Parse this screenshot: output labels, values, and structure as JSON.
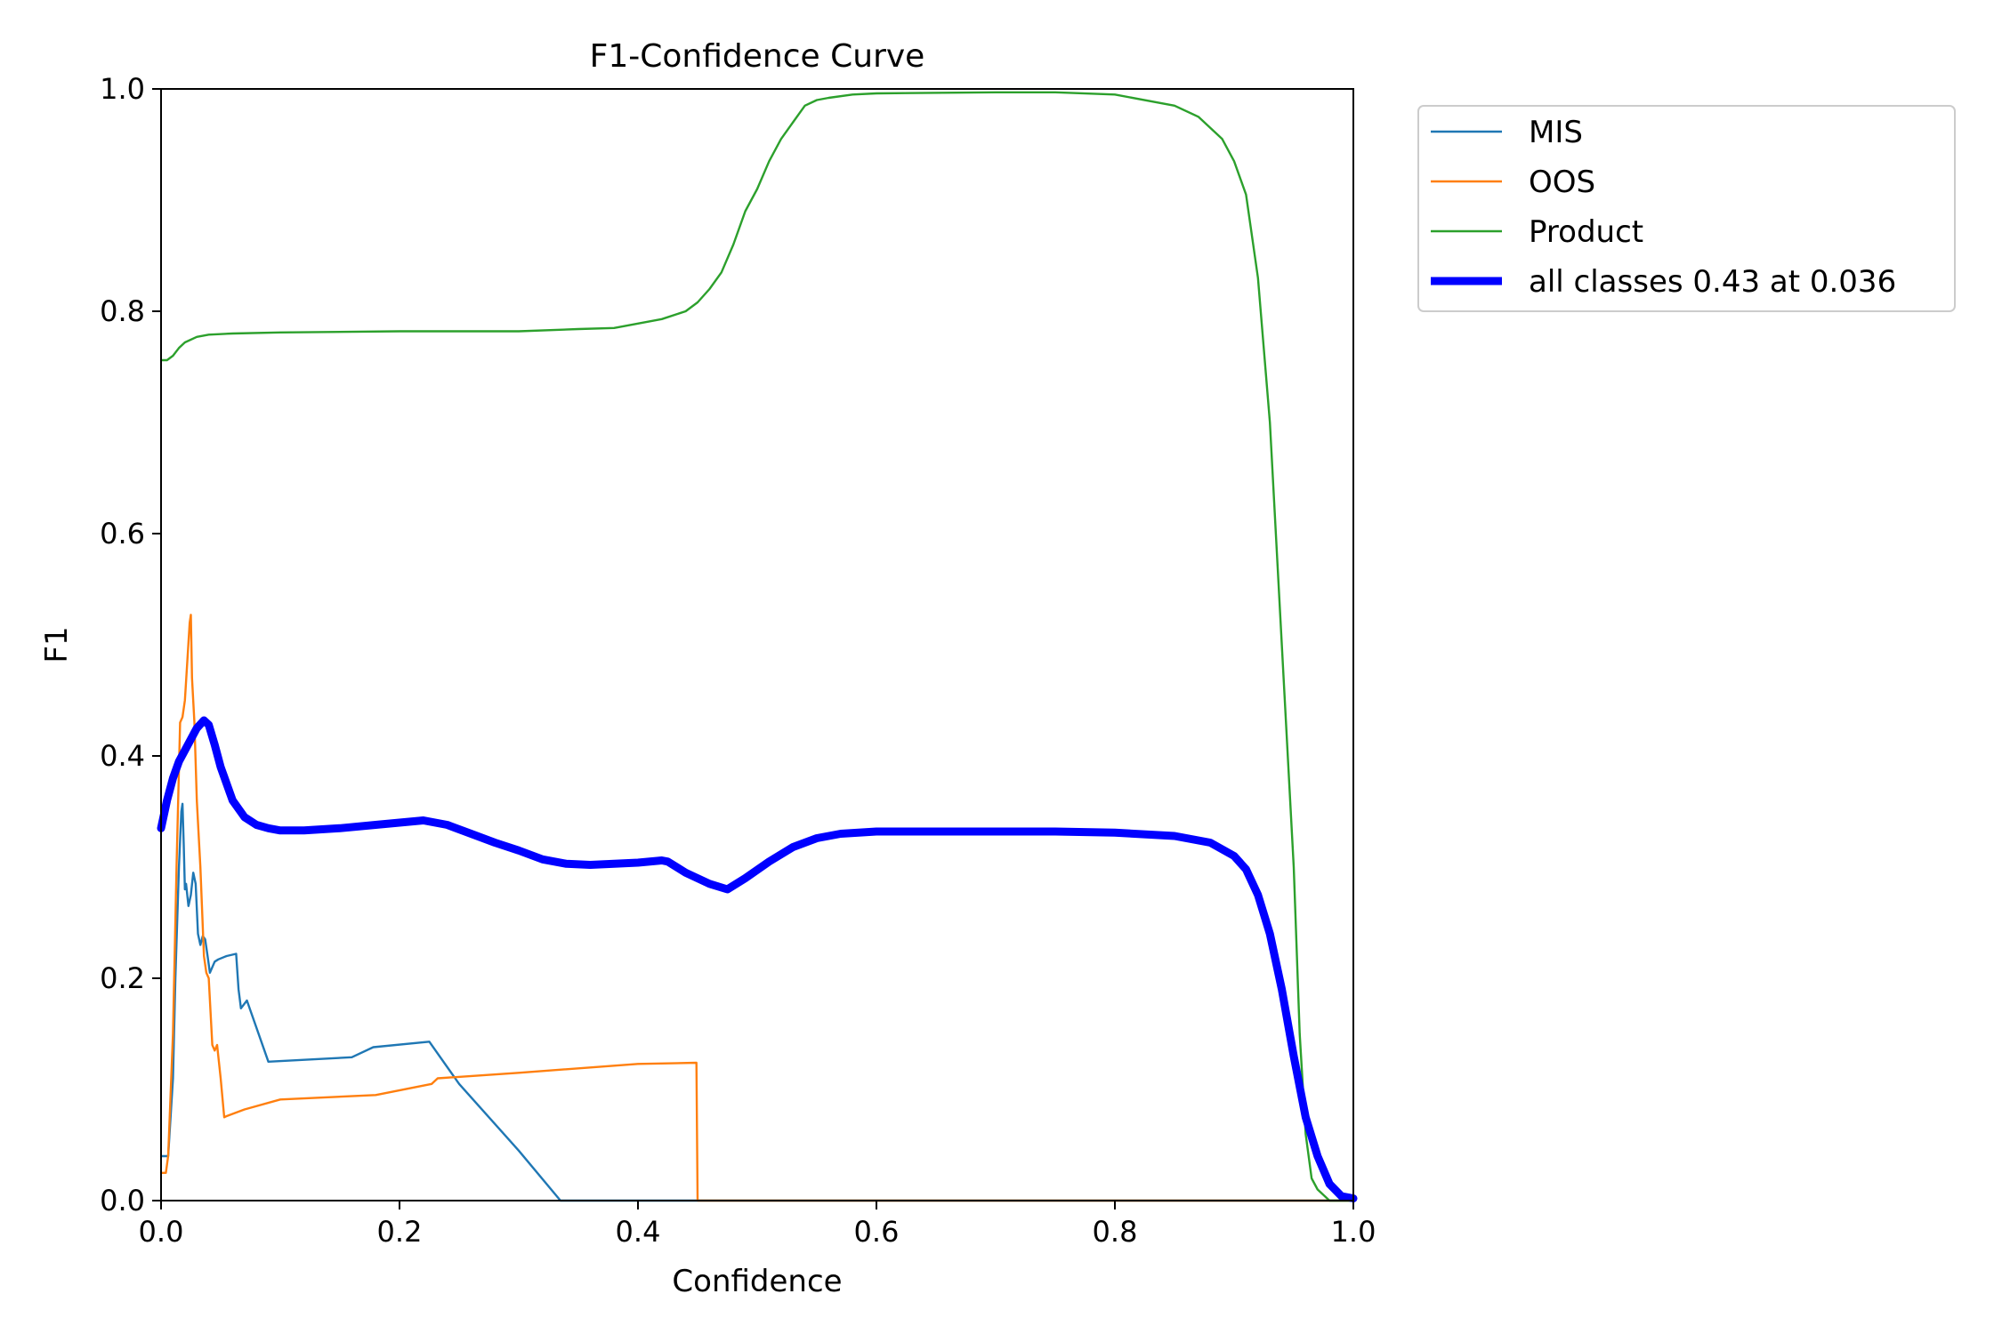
{
  "chart_data": {
    "type": "line",
    "title": "F1-Confidence Curve",
    "xlabel": "Confidence",
    "ylabel": "F1",
    "xlim": [
      0.0,
      1.0
    ],
    "ylim": [
      0.0,
      1.0
    ],
    "x_ticks": [
      "0.0",
      "0.2",
      "0.4",
      "0.6",
      "0.8",
      "1.0"
    ],
    "y_ticks": [
      "0.0",
      "0.2",
      "0.4",
      "0.6",
      "0.8",
      "1.0"
    ],
    "grid": false,
    "legend_position": "outside-top-right",
    "series": [
      {
        "name": "MIS",
        "color": "#1f77b4",
        "x": [
          0.0,
          0.006,
          0.01,
          0.012,
          0.015,
          0.017,
          0.018,
          0.019,
          0.02,
          0.021,
          0.023,
          0.025,
          0.027,
          0.029,
          0.031,
          0.033,
          0.035,
          0.037,
          0.039,
          0.041,
          0.045,
          0.048,
          0.055,
          0.063,
          0.065,
          0.067,
          0.072,
          0.09,
          0.16,
          0.178,
          0.225,
          0.25,
          0.3,
          0.335,
          0.4,
          0.6,
          0.8,
          1.0
        ],
        "y": [
          0.04,
          0.04,
          0.11,
          0.2,
          0.3,
          0.35,
          0.357,
          0.32,
          0.28,
          0.285,
          0.265,
          0.275,
          0.295,
          0.285,
          0.24,
          0.23,
          0.238,
          0.235,
          0.22,
          0.205,
          0.215,
          0.217,
          0.22,
          0.222,
          0.19,
          0.173,
          0.18,
          0.125,
          0.129,
          0.138,
          0.143,
          0.105,
          0.045,
          0.0,
          0.0,
          0.0,
          0.0,
          0.0
        ]
      },
      {
        "name": "OOS",
        "color": "#ff7f0e",
        "x": [
          0.0,
          0.004,
          0.006,
          0.01,
          0.013,
          0.016,
          0.018,
          0.02,
          0.022,
          0.024,
          0.025,
          0.026,
          0.028,
          0.03,
          0.033,
          0.036,
          0.038,
          0.04,
          0.043,
          0.045,
          0.047,
          0.05,
          0.053,
          0.055,
          0.07,
          0.1,
          0.18,
          0.227,
          0.232,
          0.3,
          0.4,
          0.449,
          0.45,
          0.6,
          0.8,
          1.0
        ],
        "y": [
          0.025,
          0.025,
          0.04,
          0.15,
          0.3,
          0.43,
          0.435,
          0.45,
          0.485,
          0.52,
          0.527,
          0.47,
          0.43,
          0.36,
          0.3,
          0.22,
          0.205,
          0.2,
          0.14,
          0.135,
          0.14,
          0.11,
          0.075,
          0.076,
          0.082,
          0.091,
          0.095,
          0.105,
          0.11,
          0.115,
          0.123,
          0.124,
          0.0,
          0.0,
          0.0,
          0.0
        ]
      },
      {
        "name": "Product",
        "color": "#2ca02c",
        "x": [
          0.0,
          0.005,
          0.01,
          0.015,
          0.02,
          0.03,
          0.04,
          0.06,
          0.1,
          0.2,
          0.3,
          0.35,
          0.38,
          0.4,
          0.42,
          0.44,
          0.45,
          0.46,
          0.47,
          0.48,
          0.49,
          0.5,
          0.51,
          0.52,
          0.53,
          0.54,
          0.55,
          0.56,
          0.58,
          0.6,
          0.7,
          0.75,
          0.8,
          0.85,
          0.87,
          0.88,
          0.89,
          0.9,
          0.91,
          0.92,
          0.93,
          0.94,
          0.95,
          0.955,
          0.96,
          0.965,
          0.97,
          0.98,
          1.0
        ],
        "y": [
          0.756,
          0.756,
          0.76,
          0.767,
          0.772,
          0.777,
          0.779,
          0.78,
          0.781,
          0.782,
          0.782,
          0.784,
          0.785,
          0.789,
          0.793,
          0.8,
          0.808,
          0.82,
          0.835,
          0.86,
          0.89,
          0.91,
          0.935,
          0.955,
          0.97,
          0.985,
          0.99,
          0.992,
          0.995,
          0.996,
          0.997,
          0.997,
          0.995,
          0.985,
          0.975,
          0.965,
          0.955,
          0.935,
          0.905,
          0.83,
          0.7,
          0.5,
          0.3,
          0.15,
          0.06,
          0.02,
          0.01,
          0.0,
          0.0
        ]
      },
      {
        "name": "all classes 0.43 at 0.036",
        "color": "#0000ff",
        "thick": true,
        "x": [
          0.0,
          0.005,
          0.01,
          0.015,
          0.02,
          0.025,
          0.03,
          0.036,
          0.04,
          0.045,
          0.05,
          0.06,
          0.07,
          0.08,
          0.09,
          0.1,
          0.12,
          0.15,
          0.18,
          0.2,
          0.22,
          0.24,
          0.26,
          0.28,
          0.3,
          0.32,
          0.34,
          0.36,
          0.38,
          0.4,
          0.42,
          0.425,
          0.44,
          0.46,
          0.475,
          0.49,
          0.51,
          0.53,
          0.55,
          0.57,
          0.6,
          0.65,
          0.7,
          0.75,
          0.8,
          0.85,
          0.88,
          0.9,
          0.91,
          0.92,
          0.93,
          0.94,
          0.95,
          0.96,
          0.97,
          0.98,
          0.99,
          1.0
        ],
        "y": [
          0.335,
          0.36,
          0.38,
          0.395,
          0.405,
          0.415,
          0.425,
          0.432,
          0.428,
          0.41,
          0.39,
          0.36,
          0.345,
          0.338,
          0.335,
          0.333,
          0.333,
          0.335,
          0.338,
          0.34,
          0.342,
          0.338,
          0.33,
          0.322,
          0.315,
          0.307,
          0.303,
          0.302,
          0.303,
          0.304,
          0.306,
          0.305,
          0.295,
          0.285,
          0.28,
          0.29,
          0.305,
          0.318,
          0.326,
          0.33,
          0.332,
          0.332,
          0.332,
          0.332,
          0.331,
          0.328,
          0.322,
          0.31,
          0.298,
          0.275,
          0.24,
          0.19,
          0.13,
          0.075,
          0.04,
          0.015,
          0.004,
          0.002
        ]
      }
    ]
  }
}
